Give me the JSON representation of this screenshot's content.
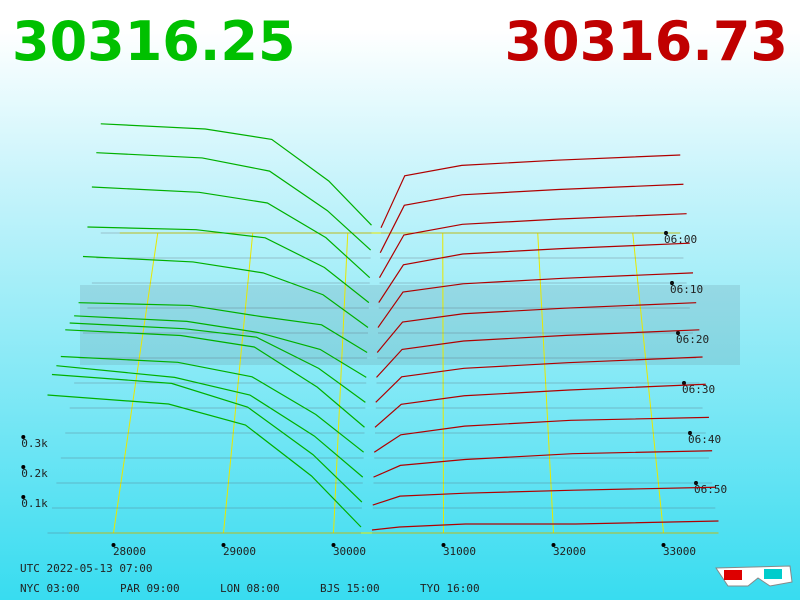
{
  "chart_data": {
    "type": "depth3d",
    "bid": 30316.25,
    "ask": 30316.73,
    "bid_color": "#00c000",
    "ask_color": "#c00000",
    "xlim": [
      27400,
      33700
    ],
    "xticks": [
      28000,
      29000,
      30000,
      31000,
      32000,
      33000
    ],
    "tlim": [
      0,
      60
    ],
    "tticks": [
      {
        "value": 0,
        "label": "06:00"
      },
      {
        "value": 10,
        "label": "06:10"
      },
      {
        "value": 20,
        "label": "06:20"
      },
      {
        "value": 30,
        "label": "06:30"
      },
      {
        "value": 40,
        "label": "06:40"
      },
      {
        "value": 50,
        "label": "06:50"
      }
    ],
    "zticks": [
      {
        "value": 0.1,
        "label": "0.1k"
      },
      {
        "value": 0.2,
        "label": "0.2k"
      },
      {
        "value": 0.3,
        "label": "0.3k"
      }
    ],
    "grid": true,
    "bids": {
      "color": "#00b000",
      "prices": [
        27400,
        28500,
        29200,
        29800,
        30250
      ],
      "rows": [
        {
          "t": 0,
          "values": [
            0.42,
            0.4,
            0.36,
            0.2,
            0.03
          ]
        },
        {
          "t": 5,
          "values": [
            0.4,
            0.38,
            0.33,
            0.18,
            0.03
          ]
        },
        {
          "t": 10,
          "values": [
            0.36,
            0.34,
            0.3,
            0.17,
            0.02
          ]
        },
        {
          "t": 15,
          "values": [
            0.3,
            0.29,
            0.26,
            0.15,
            0.02
          ]
        },
        {
          "t": 20,
          "values": [
            0.28,
            0.26,
            0.22,
            0.14,
            0.02
          ]
        },
        {
          "t": 25,
          "values": [
            0.2,
            0.19,
            0.15,
            0.12,
            0.02
          ]
        },
        {
          "t": 30,
          "values": [
            0.24,
            0.22,
            0.18,
            0.12,
            0.02
          ]
        },
        {
          "t": 35,
          "values": [
            0.3,
            0.28,
            0.25,
            0.14,
            0.02
          ]
        },
        {
          "t": 40,
          "values": [
            0.36,
            0.34,
            0.3,
            0.16,
            0.02
          ]
        },
        {
          "t": 45,
          "values": [
            0.35,
            0.33,
            0.28,
            0.15,
            0.02
          ]
        },
        {
          "t": 50,
          "values": [
            0.4,
            0.36,
            0.3,
            0.16,
            0.02
          ]
        },
        {
          "t": 55,
          "values": [
            0.45,
            0.42,
            0.34,
            0.18,
            0.02
          ]
        },
        {
          "t": 60,
          "values": [
            0.46,
            0.43,
            0.36,
            0.19,
            0.02
          ]
        }
      ]
    },
    "asks": {
      "color": "#b00000",
      "prices": [
        30350,
        30600,
        31200,
        32200,
        33500
      ],
      "rows": [
        {
          "t": 0,
          "values": [
            0.02,
            0.22,
            0.26,
            0.28,
            0.3
          ]
        },
        {
          "t": 5,
          "values": [
            0.02,
            0.2,
            0.24,
            0.26,
            0.28
          ]
        },
        {
          "t": 10,
          "values": [
            0.02,
            0.18,
            0.22,
            0.24,
            0.26
          ]
        },
        {
          "t": 15,
          "values": [
            0.02,
            0.16,
            0.2,
            0.22,
            0.24
          ]
        },
        {
          "t": 20,
          "values": [
            0.02,
            0.15,
            0.18,
            0.2,
            0.22
          ]
        },
        {
          "t": 25,
          "values": [
            0.02,
            0.13,
            0.16,
            0.18,
            0.2
          ]
        },
        {
          "t": 30,
          "values": [
            0.02,
            0.12,
            0.15,
            0.17,
            0.19
          ]
        },
        {
          "t": 35,
          "values": [
            0.02,
            0.11,
            0.14,
            0.16,
            0.18
          ]
        },
        {
          "t": 40,
          "values": [
            0.02,
            0.1,
            0.13,
            0.15,
            0.17
          ]
        },
        {
          "t": 45,
          "values": [
            0.02,
            0.08,
            0.11,
            0.13,
            0.14
          ]
        },
        {
          "t": 50,
          "values": [
            0.02,
            0.06,
            0.08,
            0.1,
            0.11
          ]
        },
        {
          "t": 55,
          "values": [
            0.01,
            0.04,
            0.05,
            0.06,
            0.07
          ]
        },
        {
          "t": 60,
          "values": [
            0.01,
            0.02,
            0.03,
            0.03,
            0.04
          ]
        }
      ]
    },
    "clock": {
      "utc": "UTC 2022-05-13 07:00",
      "cities": [
        "NYC 03:00",
        "PAR 09:00",
        "LON 08:00",
        "BJS 15:00",
        "TYO 16:00"
      ]
    }
  }
}
